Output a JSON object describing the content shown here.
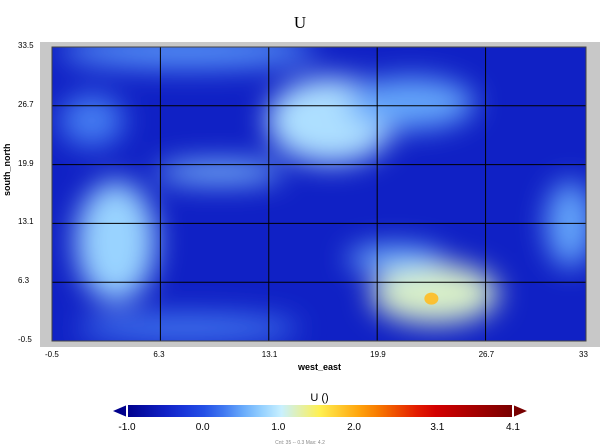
{
  "chart_data": {
    "type": "heatmap",
    "title": "U",
    "xlabel": "west_east",
    "ylabel": "south_north",
    "xlim": [
      -0.5,
      33
    ],
    "ylim": [
      -0.5,
      33.5
    ],
    "x_ticks": [
      "-0.5",
      "6.3",
      "13.1",
      "19.9",
      "26.7",
      "33"
    ],
    "y_ticks": [
      "-0.5",
      "6.3",
      "13.1",
      "19.9",
      "26.7",
      "33.5"
    ],
    "grid": true,
    "colorbar": {
      "title": "U ()",
      "ticks": [
        "-1.0",
        "0.0",
        "1.0",
        "2.0",
        "3.1",
        "4.1"
      ],
      "range": [
        -1.0,
        4.1
      ]
    },
    "field_description_blobs": [
      {
        "x": 3.5,
        "y": 11,
        "value": 1.0
      },
      {
        "x": 17,
        "y": 25,
        "value": 1.0
      },
      {
        "x": 23.5,
        "y": 5,
        "value": 1.6
      },
      {
        "x": 10,
        "y": 31,
        "value": 0.2
      },
      {
        "x": 22,
        "y": 29,
        "value": 0.4
      }
    ]
  },
  "footnote": "Cnt: 35 -- 0.3 Max: 4.2"
}
